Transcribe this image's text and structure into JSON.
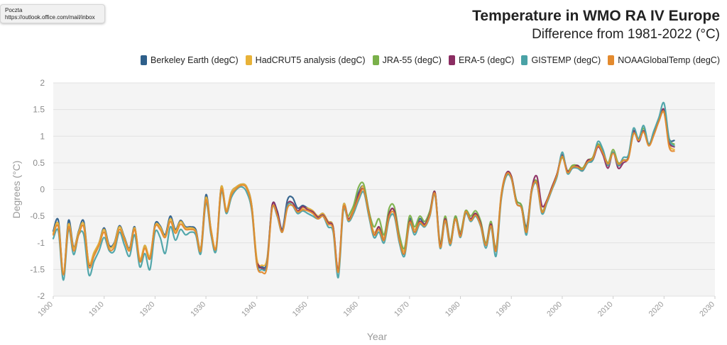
{
  "tooltip": {
    "title": "Poczta",
    "url": "https://outlook.office.com/mail/inbox"
  },
  "chart_data": {
    "type": "line",
    "title": "Temperature in WMO RA IV Europe",
    "subtitle": "Difference from 1981-2022 (°C)",
    "xlabel": "Year",
    "ylabel": "Degrees (°C)",
    "xlim": [
      1900,
      2030
    ],
    "ylim": [
      -2,
      2
    ],
    "xticks": [
      1900,
      1910,
      1920,
      1930,
      1940,
      1950,
      1960,
      1970,
      1980,
      1990,
      2000,
      2010,
      2020,
      2030
    ],
    "yticks": [
      -2,
      -1.5,
      -1,
      -0.5,
      0,
      0.5,
      1,
      1.5,
      2
    ],
    "grid": true,
    "legend_position": "top-right",
    "x": [
      1900,
      1901,
      1902,
      1903,
      1904,
      1905,
      1906,
      1907,
      1908,
      1909,
      1910,
      1911,
      1912,
      1913,
      1914,
      1915,
      1916,
      1917,
      1918,
      1919,
      1920,
      1921,
      1922,
      1923,
      1924,
      1925,
      1926,
      1927,
      1928,
      1929,
      1930,
      1931,
      1932,
      1933,
      1934,
      1935,
      1936,
      1937,
      1938,
      1939,
      1940,
      1941,
      1942,
      1943,
      1944,
      1945,
      1946,
      1947,
      1948,
      1949,
      1950,
      1951,
      1952,
      1953,
      1954,
      1955,
      1956,
      1957,
      1958,
      1959,
      1960,
      1961,
      1962,
      1963,
      1964,
      1965,
      1966,
      1967,
      1968,
      1969,
      1970,
      1971,
      1972,
      1973,
      1974,
      1975,
      1976,
      1977,
      1978,
      1979,
      1980,
      1981,
      1982,
      1983,
      1984,
      1985,
      1986,
      1987,
      1988,
      1989,
      1990,
      1991,
      1992,
      1993,
      1994,
      1995,
      1996,
      1997,
      1998,
      1999,
      2000,
      2001,
      2002,
      2003,
      2004,
      2005,
      2006,
      2007,
      2008,
      2009,
      2010,
      2011,
      2012,
      2013,
      2014,
      2015,
      2016,
      2017,
      2018,
      2019,
      2020,
      2021,
      2022
    ],
    "series": [
      {
        "name": "Berkeley Earth (degC)",
        "color": "#2e5f8a",
        "values": [
          -0.78,
          -0.58,
          -1.58,
          -0.58,
          -1.08,
          -0.78,
          -0.6,
          -1.4,
          -1.2,
          -1.0,
          -0.72,
          -1.05,
          -1.0,
          -0.68,
          -0.9,
          -1.1,
          -0.7,
          -1.35,
          -1.05,
          -1.3,
          -0.65,
          -0.68,
          -0.85,
          -0.5,
          -0.75,
          -0.58,
          -0.7,
          -0.7,
          -0.75,
          -1.1,
          -0.1,
          -0.75,
          -1.1,
          0.05,
          -0.4,
          -0.05,
          0.05,
          0.1,
          0.05,
          -0.3,
          -1.35,
          -1.45,
          -1.35,
          -0.3,
          -0.4,
          -0.75,
          -0.2,
          -0.15,
          -0.35,
          -0.3,
          -0.35,
          -0.4,
          -0.5,
          -0.45,
          -0.6,
          -0.7,
          -1.52,
          -0.3,
          -0.55,
          -0.35,
          -0.05,
          0.05,
          -0.4,
          -0.85,
          -0.7,
          -0.95,
          -0.45,
          -0.4,
          -0.95,
          -1.2,
          -0.55,
          -0.8,
          -0.55,
          -0.65,
          -0.45,
          -0.05,
          -1.05,
          -0.55,
          -1.0,
          -0.5,
          -0.85,
          -0.4,
          -0.55,
          -0.45,
          -0.65,
          -1.05,
          -0.65,
          -1.15,
          -0.15,
          0.3,
          0.25,
          -0.2,
          -0.3,
          -0.7,
          0.0,
          0.15,
          -0.4,
          -0.2,
          0.05,
          0.3,
          0.65,
          0.35,
          0.45,
          0.45,
          0.4,
          0.55,
          0.6,
          0.85,
          0.7,
          0.45,
          0.7,
          0.45,
          0.55,
          0.6,
          1.1,
          0.9,
          1.1,
          0.85,
          1.05,
          1.3,
          1.45,
          0.95,
          0.92
        ]
      },
      {
        "name": "HadCRUT5 analysis (degC)",
        "color": "#e8b238",
        "values": [
          -0.82,
          -0.65,
          -1.55,
          -0.65,
          -1.1,
          -0.8,
          -0.65,
          -1.38,
          -1.18,
          -1.0,
          -0.75,
          -1.08,
          -1.02,
          -0.7,
          -0.92,
          -1.12,
          -0.72,
          -1.3,
          -1.05,
          -1.25,
          -0.68,
          -0.7,
          -0.88,
          -0.55,
          -0.78,
          -0.6,
          -0.72,
          -0.72,
          -0.78,
          -1.1,
          -0.15,
          -0.75,
          -1.08,
          0.05,
          -0.38,
          -0.05,
          0.05,
          0.1,
          0.05,
          -0.3,
          -1.3,
          -1.42,
          -1.3,
          -0.35,
          -0.45,
          -0.78,
          -0.3,
          -0.25,
          -0.4,
          -0.35,
          -0.35,
          -0.4,
          -0.5,
          -0.45,
          -0.6,
          -0.7,
          -1.5,
          -0.3,
          -0.55,
          -0.35,
          -0.1,
          0.05,
          -0.45,
          -0.8,
          -0.7,
          -0.9,
          -0.45,
          -0.4,
          -0.9,
          -1.15,
          -0.6,
          -0.75,
          -0.6,
          -0.65,
          -0.45,
          -0.05,
          -1.05,
          -0.55,
          -1.0,
          -0.55,
          -0.85,
          -0.4,
          -0.55,
          -0.45,
          -0.65,
          -1.0,
          -0.65,
          -1.1,
          -0.1,
          0.3,
          0.25,
          -0.25,
          -0.35,
          -0.75,
          0.0,
          0.15,
          -0.4,
          -0.2,
          0.05,
          0.3,
          0.6,
          0.35,
          0.45,
          0.45,
          0.4,
          0.55,
          0.6,
          0.85,
          0.7,
          0.5,
          0.7,
          0.5,
          0.55,
          0.6,
          1.05,
          0.95,
          1.1,
          0.85,
          1.05,
          1.3,
          1.45,
          0.85,
          0.75
        ]
      },
      {
        "name": "JRA-55 (degC)",
        "color": "#7ab04a",
        "values": [
          null,
          null,
          null,
          null,
          null,
          null,
          null,
          null,
          null,
          null,
          null,
          null,
          null,
          null,
          null,
          null,
          null,
          null,
          null,
          null,
          null,
          null,
          null,
          null,
          null,
          null,
          null,
          null,
          null,
          null,
          null,
          null,
          null,
          null,
          null,
          null,
          null,
          null,
          null,
          null,
          null,
          null,
          null,
          null,
          null,
          null,
          null,
          null,
          null,
          null,
          null,
          null,
          null,
          null,
          null,
          null,
          null,
          null,
          -0.5,
          -0.3,
          0.05,
          0.1,
          -0.4,
          -0.7,
          -0.55,
          -0.85,
          -0.35,
          -0.32,
          -0.85,
          -1.1,
          -0.5,
          -0.7,
          -0.5,
          -0.6,
          -0.4,
          -0.05,
          -1.0,
          -0.5,
          -0.95,
          -0.5,
          -0.8,
          -0.4,
          -0.5,
          -0.4,
          -0.6,
          -1.0,
          -0.6,
          -1.1,
          -0.15,
          0.25,
          0.25,
          -0.2,
          -0.3,
          -0.75,
          0.0,
          0.15,
          -0.4,
          -0.2,
          0.05,
          0.3,
          0.6,
          0.35,
          0.45,
          0.45,
          0.4,
          0.55,
          0.6,
          0.85,
          0.7,
          0.5,
          0.75,
          0.5,
          0.55,
          0.6,
          1.05,
          0.95,
          1.15,
          0.85,
          1.05,
          1.3,
          1.5,
          0.95,
          0.85
        ]
      },
      {
        "name": "ERA-5 (degC)",
        "color": "#8b2d62",
        "values": [
          null,
          null,
          null,
          null,
          null,
          null,
          null,
          null,
          null,
          null,
          null,
          null,
          null,
          null,
          null,
          null,
          null,
          null,
          null,
          null,
          null,
          null,
          null,
          null,
          null,
          null,
          null,
          null,
          null,
          null,
          null,
          null,
          null,
          null,
          null,
          null,
          null,
          null,
          null,
          null,
          -1.38,
          -1.48,
          -1.38,
          -0.3,
          -0.42,
          -0.78,
          -0.28,
          -0.25,
          -0.4,
          -0.32,
          -0.38,
          -0.42,
          -0.52,
          -0.48,
          -0.62,
          -0.72,
          -1.52,
          -0.35,
          -0.55,
          -0.4,
          -0.1,
          0.0,
          -0.45,
          -0.85,
          -0.7,
          -0.95,
          -0.45,
          -0.4,
          -0.95,
          -1.2,
          -0.6,
          -0.8,
          -0.6,
          -0.65,
          -0.45,
          -0.05,
          -1.05,
          -0.55,
          -1.0,
          -0.55,
          -0.85,
          -0.45,
          -0.55,
          -0.45,
          -0.65,
          -1.05,
          -0.65,
          -1.15,
          -0.15,
          0.3,
          0.25,
          -0.25,
          -0.35,
          -0.8,
          0.0,
          0.25,
          -0.3,
          -0.2,
          0.05,
          0.3,
          0.65,
          0.35,
          0.4,
          0.45,
          0.35,
          0.55,
          0.55,
          0.8,
          0.65,
          0.4,
          0.7,
          0.4,
          0.5,
          0.6,
          1.1,
          0.9,
          1.1,
          0.85,
          1.05,
          1.3,
          1.5,
          0.9,
          0.8
        ]
      },
      {
        "name": "GISTEMP (degC)",
        "color": "#4aa2a6",
        "values": [
          -0.92,
          -0.78,
          -1.7,
          -0.75,
          -1.22,
          -0.85,
          -0.85,
          -1.6,
          -1.35,
          -1.15,
          -0.9,
          -1.15,
          -1.15,
          -0.8,
          -1.05,
          -1.25,
          -0.85,
          -1.45,
          -1.2,
          -1.5,
          -0.8,
          -0.9,
          -1.2,
          -0.7,
          -0.95,
          -0.75,
          -0.85,
          -0.8,
          -0.85,
          -1.2,
          -0.25,
          -0.85,
          -1.15,
          -0.05,
          -0.45,
          -0.15,
          0.0,
          0.05,
          -0.05,
          -0.4,
          -1.4,
          -1.5,
          -1.4,
          -0.35,
          -0.5,
          -0.8,
          -0.3,
          -0.3,
          -0.45,
          -0.4,
          -0.45,
          -0.5,
          -0.55,
          -0.5,
          -0.7,
          -0.8,
          -1.65,
          -0.4,
          -0.6,
          -0.45,
          -0.2,
          -0.05,
          -0.5,
          -0.9,
          -0.8,
          -1.0,
          -0.55,
          -0.5,
          -1.0,
          -1.25,
          -0.65,
          -0.85,
          -0.65,
          -0.7,
          -0.5,
          -0.1,
          -1.1,
          -0.6,
          -1.05,
          -0.55,
          -0.9,
          -0.45,
          -0.6,
          -0.5,
          -0.7,
          -1.1,
          -0.7,
          -1.25,
          -0.2,
          0.25,
          0.2,
          -0.25,
          -0.35,
          -0.85,
          -0.05,
          0.1,
          -0.45,
          -0.25,
          0.0,
          0.25,
          0.7,
          0.3,
          0.4,
          0.4,
          0.35,
          0.5,
          0.55,
          0.9,
          0.75,
          0.45,
          0.7,
          0.45,
          0.6,
          0.65,
          1.15,
          0.95,
          1.2,
          0.85,
          1.1,
          1.35,
          1.62,
          0.95,
          0.82
        ]
      },
      {
        "name": "NOAAGlobalTemp (degC)",
        "color": "#e38a2e",
        "values": [
          -0.85,
          -0.7,
          -1.6,
          -0.7,
          -1.15,
          -0.85,
          -0.7,
          -1.45,
          -1.25,
          -1.05,
          -0.8,
          -1.12,
          -1.08,
          -0.75,
          -0.95,
          -1.15,
          -0.75,
          -1.35,
          -1.1,
          -1.3,
          -0.7,
          -0.75,
          -0.9,
          -0.6,
          -0.82,
          -0.65,
          -0.75,
          -0.75,
          -0.8,
          -1.15,
          -0.2,
          -0.8,
          -1.1,
          0.0,
          -0.42,
          -0.1,
          0.02,
          0.08,
          0.02,
          -0.35,
          -1.4,
          -1.55,
          -1.45,
          -0.35,
          -0.48,
          -0.8,
          -0.35,
          -0.3,
          -0.42,
          -0.38,
          -0.4,
          -0.45,
          -0.55,
          -0.5,
          -0.65,
          -0.75,
          -1.55,
          -0.35,
          -0.58,
          -0.4,
          -0.15,
          0.0,
          -0.45,
          -0.85,
          -0.75,
          -0.95,
          -0.5,
          -0.45,
          -0.95,
          -1.2,
          -0.62,
          -0.8,
          -0.62,
          -0.68,
          -0.48,
          -0.08,
          -1.08,
          -0.58,
          -1.02,
          -0.55,
          -0.88,
          -0.42,
          -0.58,
          -0.48,
          -0.68,
          -1.05,
          -0.68,
          -1.15,
          -0.15,
          0.28,
          0.22,
          -0.25,
          -0.35,
          -0.8,
          -0.02,
          0.12,
          -0.42,
          -0.22,
          0.02,
          0.28,
          0.62,
          0.32,
          0.42,
          0.42,
          0.38,
          0.52,
          0.58,
          0.82,
          0.68,
          0.48,
          0.68,
          0.48,
          0.55,
          0.58,
          1.05,
          0.92,
          1.08,
          0.82,
          1.02,
          1.28,
          1.45,
          0.8,
          0.72
        ]
      }
    ]
  }
}
